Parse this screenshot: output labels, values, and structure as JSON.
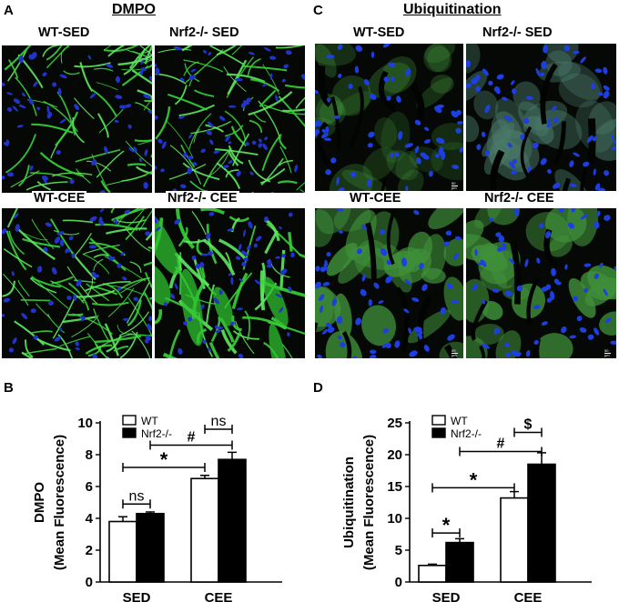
{
  "panels": {
    "A": {
      "letter": "A",
      "title": "DMPO",
      "images": [
        {
          "label": "WT-SED",
          "style": "dmpo-sparse"
        },
        {
          "label": "Nrf2-/- SED",
          "style": "dmpo-sparse"
        },
        {
          "label": "WT-CEE",
          "style": "dmpo-dense"
        },
        {
          "label": "Nrf2-/- CEE",
          "style": "dmpo-streaks"
        }
      ]
    },
    "C": {
      "letter": "C",
      "title": "Ubiquitination",
      "images": [
        {
          "label": "WT-SED",
          "style": "ubi-low",
          "scale": "50 µm"
        },
        {
          "label": "Nrf2-/- SED",
          "style": "ubi-medium",
          "scale": ""
        },
        {
          "label": "WT-CEE",
          "style": "ubi-high",
          "scale": "50 µm"
        },
        {
          "label": "Nrf2-/- CEE",
          "style": "ubi-high",
          "scale": "50 µm"
        }
      ]
    }
  },
  "chart_data": [
    {
      "panel": "B",
      "type": "bar",
      "categories": [
        "SED",
        "CEE"
      ],
      "series": [
        {
          "name": "WT",
          "values": [
            3.8,
            6.5
          ],
          "errors": [
            0.3,
            0.2
          ],
          "fill": "#ffffff"
        },
        {
          "name": "Nrf2-/-",
          "values": [
            4.3,
            7.7
          ],
          "errors": [
            0.1,
            0.45
          ],
          "fill": "#000000"
        }
      ],
      "ylabel": [
        "DMPO",
        "(Mean Fluorescence)"
      ],
      "xlabel": "",
      "ylim": [
        0,
        10
      ],
      "yticks": [
        "0",
        "2",
        "4",
        "6",
        "8",
        "10"
      ],
      "legend": "top",
      "annotations": [
        {
          "text": "ns",
          "from": [
            "SED",
            "WT"
          ],
          "to": [
            "SED",
            "Nrf2-/-"
          ],
          "y": 4.9
        },
        {
          "text": "*",
          "from": [
            "SED",
            "WT"
          ],
          "to": [
            "CEE",
            "WT"
          ],
          "y": 7.2
        },
        {
          "text": "#",
          "from": [
            "SED",
            "Nrf2-/-"
          ],
          "to": [
            "CEE",
            "Nrf2-/-"
          ],
          "y": 8.6
        },
        {
          "text": "ns",
          "from": [
            "CEE",
            "WT"
          ],
          "to": [
            "CEE",
            "Nrf2-/-"
          ],
          "y": 9.6
        }
      ]
    },
    {
      "panel": "D",
      "type": "bar",
      "categories": [
        "SED",
        "CEE"
      ],
      "series": [
        {
          "name": "WT",
          "values": [
            2.6,
            13.2
          ],
          "errors": [
            0.2,
            1.0
          ],
          "fill": "#ffffff"
        },
        {
          "name": "Nrf2-/-",
          "values": [
            6.2,
            18.5
          ],
          "errors": [
            0.6,
            1.8
          ],
          "fill": "#000000"
        }
      ],
      "ylabel": [
        "Ubiquitination",
        "(Mean Fluorescence)"
      ],
      "xlabel": "",
      "ylim": [
        0,
        25
      ],
      "yticks": [
        "0",
        "5",
        "10",
        "15",
        "20",
        "25"
      ],
      "legend": "top",
      "annotations": [
        {
          "text": "*",
          "from": [
            "SED",
            "WT"
          ],
          "to": [
            "SED",
            "Nrf2-/-"
          ],
          "y": 7.7
        },
        {
          "text": "*",
          "from": [
            "SED",
            "WT"
          ],
          "to": [
            "CEE",
            "WT"
          ],
          "y": 14.8
        },
        {
          "text": "#",
          "from": [
            "SED",
            "Nrf2-/-"
          ],
          "to": [
            "CEE",
            "Nrf2-/-"
          ],
          "y": 20.5
        },
        {
          "text": "$",
          "from": [
            "CEE",
            "WT"
          ],
          "to": [
            "CEE",
            "Nrf2-/-"
          ],
          "y": 23.5
        }
      ]
    }
  ]
}
